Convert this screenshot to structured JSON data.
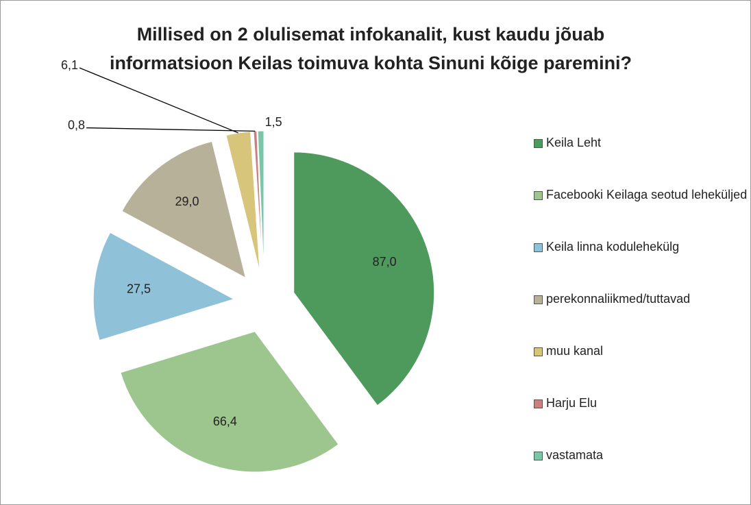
{
  "chart_data": {
    "type": "pie",
    "title": "Millised on 2 olulisemat infokanalit, kust kaudu jõuab informatsioon Keilas toimuva kohta Sinuni kõige paremini?",
    "categories": [
      "Keila Leht",
      "Facebooki Keilaga seotud leheküljed",
      "Keila linna kodulehekülg",
      "perekonnaliikmed/tuttavad",
      "muu kanal",
      "Harju Elu",
      "vastamata"
    ],
    "values": [
      87.0,
      66.4,
      27.5,
      29.0,
      6.1,
      0.8,
      1.5
    ],
    "value_labels": [
      "87,0",
      "66,4",
      "27,5",
      "29,0",
      "6,1",
      "0,8",
      "1,5"
    ],
    "colors": [
      "#4e9a5c",
      "#9cc68e",
      "#8fc1d8",
      "#b8b19a",
      "#d8c57c",
      "#c98080",
      "#7cc6a8"
    ],
    "legend": "right"
  }
}
